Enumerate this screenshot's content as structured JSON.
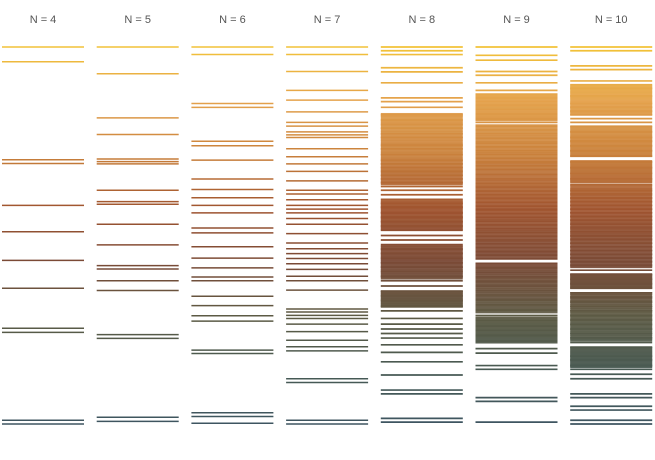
{
  "chart_data": {
    "type": "line",
    "description_free": true,
    "ylim": [
      0,
      1
    ],
    "grid": false,
    "legend": "none",
    "colormap": [
      "#F2C238",
      "#E4A24C",
      "#C9803B",
      "#A0542F",
      "#7A4A36",
      "#5C5A44",
      "#485A53",
      "#3E5560"
    ],
    "series": [
      {
        "label": "N = 4",
        "n": 4,
        "values": [
          0.0,
          0.039,
          0.299,
          0.309,
          0.42,
          0.49,
          0.566,
          0.64,
          0.746,
          0.757,
          0.99,
          1.0
        ]
      },
      {
        "label": "N = 5",
        "n": 5,
        "values": [
          0.0,
          0.071,
          0.188,
          0.232,
          0.297,
          0.304,
          0.31,
          0.38,
          0.41,
          0.417,
          0.47,
          0.525,
          0.58,
          0.589,
          0.62,
          0.646,
          0.763,
          0.773,
          0.982,
          0.993
        ]
      },
      {
        "label": "N = 6",
        "n": 6,
        "values": [
          0.0,
          0.02,
          0.15,
          0.16,
          0.25,
          0.262,
          0.3,
          0.35,
          0.378,
          0.4,
          0.42,
          0.44,
          0.48,
          0.493,
          0.53,
          0.56,
          0.586,
          0.61,
          0.62,
          0.661,
          0.686,
          0.713,
          0.727,
          0.804,
          0.813,
          0.97,
          0.98,
          0.998
        ]
      },
      {
        "label": "N = 7",
        "n": 7,
        "values": [
          0.0,
          0.02,
          0.065,
          0.115,
          0.141,
          0.172,
          0.2,
          0.21,
          0.225,
          0.233,
          0.24,
          0.27,
          0.291,
          0.31,
          0.33,
          0.355,
          0.38,
          0.39,
          0.405,
          0.42,
          0.43,
          0.44,
          0.455,
          0.47,
          0.495,
          0.52,
          0.535,
          0.548,
          0.561,
          0.575,
          0.59,
          0.608,
          0.62,
          0.645,
          0.695,
          0.703,
          0.712,
          0.72,
          0.735,
          0.755,
          0.778,
          0.795,
          0.806,
          0.88,
          0.89,
          0.99,
          1.0
        ]
      },
      {
        "label": "N = 8",
        "n": 8,
        "values": [
          0.0,
          0.01,
          0.02,
          0.055,
          0.066,
          0.095,
          0.135,
          0.145,
          0.16,
          0.18,
          0.195,
          0.205,
          0.215,
          0.23,
          0.24,
          0.26,
          0.27,
          0.285,
          0.3,
          0.31,
          0.32,
          0.33,
          0.34,
          0.35,
          0.36,
          0.37,
          0.38,
          0.392,
          0.404,
          0.415,
          0.425,
          0.44,
          0.452,
          0.463,
          0.475,
          0.486,
          0.5,
          0.512,
          0.524,
          0.536,
          0.548,
          0.56,
          0.572,
          0.584,
          0.596,
          0.608,
          0.62,
          0.634,
          0.648,
          0.66,
          0.672,
          0.688,
          0.7,
          0.72,
          0.735,
          0.748,
          0.76,
          0.772,
          0.79,
          0.81,
          0.835,
          0.87,
          0.91,
          0.92,
          0.985,
          0.995
        ]
      },
      {
        "label": "N = 9",
        "n": 9,
        "values": [
          0.0,
          0.022,
          0.035,
          0.065,
          0.075,
          0.095,
          0.115,
          0.125,
          0.135,
          0.145,
          0.155,
          0.165,
          0.178,
          0.19,
          0.2,
          0.21,
          0.22,
          0.23,
          0.242,
          0.255,
          0.265,
          0.275,
          0.285,
          0.295,
          0.305,
          0.315,
          0.325,
          0.338,
          0.35,
          0.362,
          0.372,
          0.382,
          0.392,
          0.402,
          0.412,
          0.422,
          0.432,
          0.442,
          0.452,
          0.462,
          0.472,
          0.482,
          0.492,
          0.502,
          0.512,
          0.522,
          0.532,
          0.542,
          0.552,
          0.562,
          0.574,
          0.586,
          0.598,
          0.61,
          0.622,
          0.634,
          0.646,
          0.658,
          0.67,
          0.684,
          0.698,
          0.712,
          0.726,
          0.74,
          0.752,
          0.765,
          0.78,
          0.8,
          0.812,
          0.845,
          0.855,
          0.93,
          0.94,
          0.995
        ]
      },
      {
        "label": "N = 10",
        "n": 10,
        "values": [
          0.0,
          0.01,
          0.05,
          0.06,
          0.09,
          0.1,
          0.11,
          0.13,
          0.15,
          0.16,
          0.17,
          0.18,
          0.19,
          0.2,
          0.21,
          0.225,
          0.24,
          0.25,
          0.262,
          0.275,
          0.29,
          0.305,
          0.32,
          0.335,
          0.35,
          0.365,
          0.38,
          0.39,
          0.4,
          0.41,
          0.42,
          0.43,
          0.44,
          0.45,
          0.46,
          0.47,
          0.48,
          0.49,
          0.5,
          0.51,
          0.52,
          0.53,
          0.54,
          0.55,
          0.56,
          0.57,
          0.58,
          0.592,
          0.604,
          0.616,
          0.628,
          0.64,
          0.652,
          0.664,
          0.676,
          0.688,
          0.7,
          0.712,
          0.724,
          0.736,
          0.748,
          0.76,
          0.772,
          0.784,
          0.796,
          0.82,
          0.83,
          0.845,
          0.855,
          0.868,
          0.88,
          0.92,
          0.93,
          0.953,
          0.963,
          0.99,
          1.0
        ]
      }
    ],
    "bands": [
      {
        "series": 8,
        "from": 0.175,
        "to": 0.365
      },
      {
        "series": 8,
        "from": 0.405,
        "to": 0.485
      },
      {
        "series": 8,
        "from": 0.525,
        "to": 0.615
      },
      {
        "series": 8,
        "from": 0.645,
        "to": 0.69
      },
      {
        "series": 9,
        "from": 0.125,
        "to": 0.195
      },
      {
        "series": 9,
        "from": 0.205,
        "to": 0.56
      },
      {
        "series": 9,
        "from": 0.575,
        "to": 0.705
      },
      {
        "series": 9,
        "from": 0.715,
        "to": 0.785
      },
      {
        "series": 10,
        "from": 0.1,
        "to": 0.18
      },
      {
        "series": 10,
        "from": 0.21,
        "to": 0.29
      },
      {
        "series": 10,
        "from": 0.3,
        "to": 0.36
      },
      {
        "series": 10,
        "from": 0.365,
        "to": 0.585
      },
      {
        "series": 10,
        "from": 0.6,
        "to": 0.64
      },
      {
        "series": 10,
        "from": 0.65,
        "to": 0.78
      },
      {
        "series": 10,
        "from": 0.795,
        "to": 0.85
      }
    ]
  }
}
